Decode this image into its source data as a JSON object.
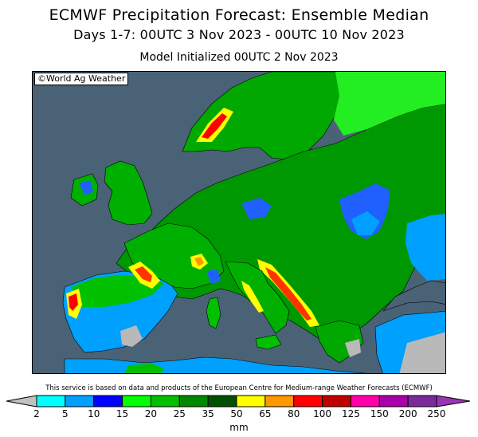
{
  "header": {
    "title": "ECMWF Precipitation Forecast: Ensemble Median",
    "period": "Days 1-7: 00UTC 3 Nov 2023 - 00UTC 10 Nov 2023",
    "initialized": "Model Initialized 00UTC 2 Nov 2023"
  },
  "map": {
    "copyright": "©World Ag Weather",
    "colors": {
      "sea": "#4a6275",
      "dry_land": "#b9b9b9",
      "country_border": "#000000"
    }
  },
  "attribution": "This service is based on data and products of the European Centre for Medium-range Weather Forecasts (ECMWF)",
  "legend": {
    "unit": "mm",
    "ticks": [
      "2",
      "5",
      "10",
      "15",
      "20",
      "25",
      "35",
      "50",
      "65",
      "80",
      "100",
      "125",
      "150",
      "200",
      "250"
    ],
    "colors": [
      "#00ffff",
      "#00a0ff",
      "#0000ff",
      "#00ff00",
      "#00c000",
      "#008800",
      "#005000",
      "#ffff00",
      "#ff9900",
      "#ff0000",
      "#c00000",
      "#ff00aa",
      "#aa00aa",
      "#7a2a9a"
    ],
    "under_color": "#c0c0c0",
    "over_color": "#9b34b4"
  }
}
